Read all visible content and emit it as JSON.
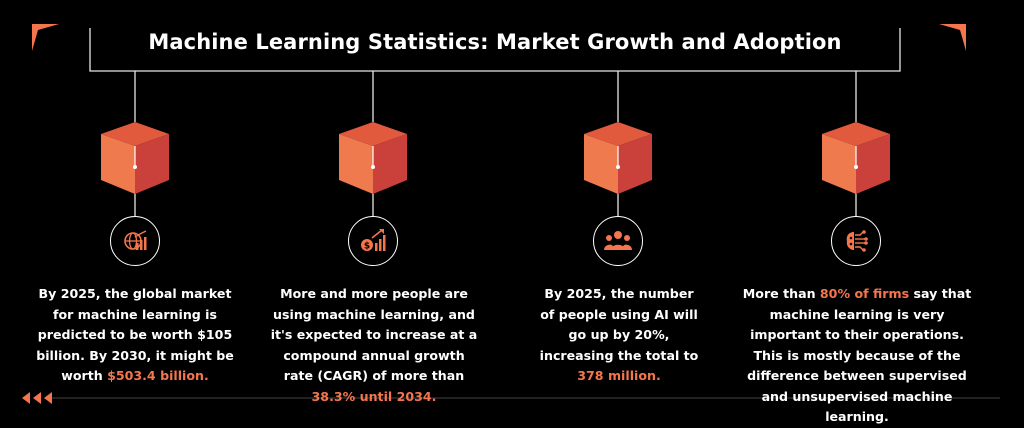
{
  "title": "Machine Learning Statistics: Market Growth and Adoption",
  "colors": {
    "background": "#000000",
    "accent": "#f5754d",
    "cube_top": "#e25a3e",
    "cube_left": "#ee7a4e",
    "cube_right": "#c9413a",
    "text": "#ffffff"
  },
  "stats": [
    {
      "icon": "globe-chart-icon",
      "text_before": "By 2025, the global market for machine learning is predicted to be worth $105 billion. By 2030, it might be worth ",
      "highlight": "$503.4 billion.",
      "text_after": ""
    },
    {
      "icon": "money-growth-chart-icon",
      "text_before": "More and more people are using machine learning, and it's expected to increase at a compound annual growth rate (CAGR) of more than ",
      "highlight": "38.3% until 2034.",
      "text_after": ""
    },
    {
      "icon": "people-group-icon",
      "text_before": "By 2025, the number of people using AI will go up by 20%, increasing the total to ",
      "highlight": "378 million.",
      "text_after": ""
    },
    {
      "icon": "ai-chip-brain-icon",
      "text_before": "More than ",
      "highlight": "80% of firms",
      "text_after": " say that machine learning is very important to their operations. This is mostly because of the difference between supervised and unsupervised machine learning."
    }
  ]
}
